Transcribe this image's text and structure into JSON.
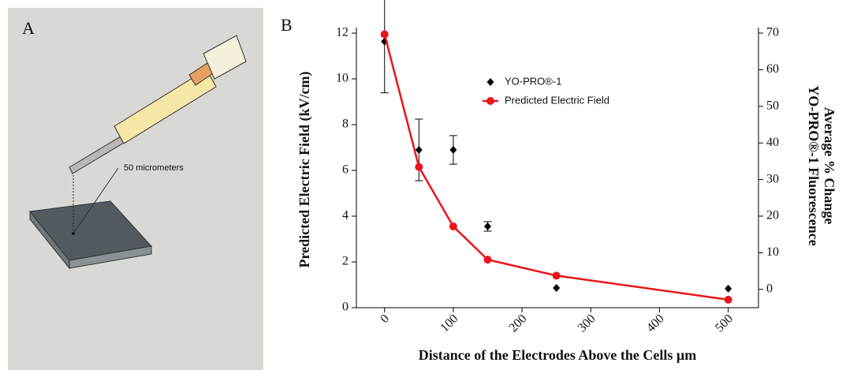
{
  "panel_labels": [
    "A",
    "B"
  ],
  "illustration": {
    "label": "50 micrometers"
  },
  "chart_data": {
    "type": "line",
    "x_label": "Distance of the Electrodes Above the Cells µm",
    "y_label": "Predicted Electric Field (kV/cm)",
    "y2_label": [
      "Average % Change",
      "YO-PRO®-1 Fluorescence"
    ],
    "x": [
      0,
      50,
      100,
      150,
      250,
      500
    ],
    "xlim": [
      -41,
      544
    ],
    "xticks": [
      0,
      100,
      200,
      300,
      400,
      500
    ],
    "ylim": [
      0,
      12
    ],
    "yticks": [
      0,
      2,
      4,
      6,
      8,
      10,
      12
    ],
    "y2lim": [
      -5,
      70
    ],
    "y2ticks": [
      0,
      10,
      20,
      30,
      40,
      50,
      60,
      70
    ],
    "legend_position": "upper center",
    "series": [
      {
        "name": "YO-PRO®-1",
        "color": "#000000",
        "kind": "scatter",
        "axis": "y2",
        "values": [
          67.7,
          38.1,
          38.1,
          17.2,
          0.4,
          0.2
        ],
        "errors": [
          14,
          8.4,
          3.9,
          1.3,
          0,
          0
        ]
      },
      {
        "name": "Predicted Electric Field",
        "color": "#e8161b",
        "kind": "line",
        "values": [
          11.95,
          6.15,
          3.55,
          2.1,
          1.4,
          0.35
        ]
      }
    ]
  }
}
